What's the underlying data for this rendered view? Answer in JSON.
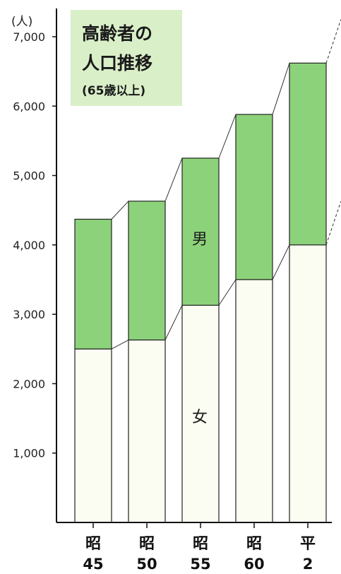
{
  "chart_data": {
    "type": "bar",
    "stacked": true,
    "title_lines": [
      "高齢者の",
      "人口推移",
      "(65歳以上)"
    ],
    "y_unit_label": "(人)",
    "ylim": [
      0,
      7000
    ],
    "y_ticks": [
      1000,
      2000,
      3000,
      4000,
      5000,
      6000,
      7000
    ],
    "y_tick_labels": [
      "1,000",
      "2,000",
      "3,000",
      "4,000",
      "5,000",
      "6,000",
      "7,000"
    ],
    "categories": [
      {
        "era": "昭",
        "year": "45"
      },
      {
        "era": "昭",
        "year": "50"
      },
      {
        "era": "昭",
        "year": "55"
      },
      {
        "era": "昭",
        "year": "60"
      },
      {
        "era": "平",
        "year": "2"
      }
    ],
    "series": [
      {
        "name": "女",
        "color": "#fbfdf2",
        "values": [
          2500,
          2630,
          3130,
          3500,
          4000
        ]
      },
      {
        "name": "男",
        "color": "#8cd27a",
        "values": [
          1870,
          2000,
          2120,
          2380,
          2620
        ]
      }
    ],
    "grid": false,
    "legend": "inside bars"
  }
}
